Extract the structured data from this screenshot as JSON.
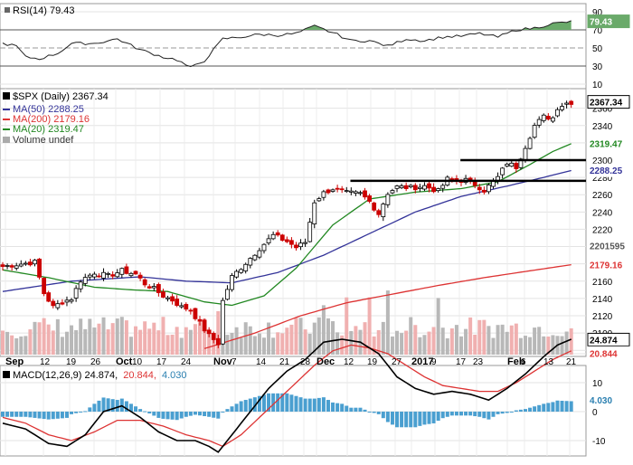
{
  "header": {
    "rsi_label": "RSI(14) 79.43",
    "price_label": "$SPX (Daily) 2367.34",
    "ma50_label": "MA(50) 2288.25",
    "ma200_label": "MA(200) 2179.16",
    "ma20_label": "MA(20) 2319.47",
    "volume_label": "Volume undef",
    "macd_label_a": "MACD(12,26,9) 24.874,",
    "macd_label_b": "20.844,",
    "macd_label_c": "4.030"
  },
  "colors": {
    "up_candle": "#000000",
    "down_candle": "#cc0000",
    "ma50": "#333399",
    "ma200": "#dd3333",
    "ma20": "#228822",
    "volume_up": "#b8b8b8",
    "volume_down": "#f0b0b0",
    "macd_line": "#000000",
    "signal_line": "#dd3333",
    "histogram": "#4a9fd0",
    "rsi_fill": "#6aaa6a"
  },
  "chart_data": {
    "type": "candlestick",
    "x_ticks": [
      "Sep",
      "12",
      "19",
      "26",
      "Oct",
      "10",
      "17",
      "24",
      "Nov",
      "7",
      "14",
      "21",
      "28",
      "Dec",
      "12",
      "19",
      "27",
      "2017",
      "9",
      "17",
      "23",
      "Feb",
      "6",
      "13",
      "21"
    ],
    "price_y_ticks": [
      2080,
      2100,
      2120,
      2140,
      2160,
      2180,
      2200,
      2220,
      2240,
      2260,
      2280,
      2300,
      2320,
      2340,
      2360
    ],
    "price_ylim": [
      2075,
      2375
    ],
    "rsi_ticks": [
      90,
      70,
      50,
      30,
      10
    ],
    "rsi_ylim": [
      5,
      95
    ],
    "macd_ticks": [
      20,
      10,
      0,
      -10
    ],
    "macd_ylim": [
      -15,
      30
    ],
    "price_anchor_points": [
      [
        0,
        2177
      ],
      [
        4,
        2180
      ],
      [
        7,
        2182
      ],
      [
        9,
        2146
      ],
      [
        11,
        2130
      ],
      [
        13,
        2136
      ],
      [
        15,
        2140
      ],
      [
        17,
        2161
      ],
      [
        20,
        2170
      ],
      [
        23,
        2166
      ],
      [
        26,
        2172
      ],
      [
        29,
        2168
      ],
      [
        31,
        2157
      ],
      [
        33,
        2151
      ],
      [
        35,
        2143
      ],
      [
        37,
        2138
      ],
      [
        39,
        2130
      ],
      [
        41,
        2127
      ],
      [
        43,
        2111
      ],
      [
        45,
        2097
      ],
      [
        47,
        2088
      ],
      [
        48,
        2137
      ],
      [
        50,
        2165
      ],
      [
        53,
        2181
      ],
      [
        56,
        2198
      ],
      [
        59,
        2213
      ],
      [
        62,
        2206
      ],
      [
        64,
        2199
      ],
      [
        66,
        2205
      ],
      [
        68,
        2252
      ],
      [
        70,
        2262
      ],
      [
        72,
        2267
      ],
      [
        75,
        2262
      ],
      [
        78,
        2261
      ],
      [
        80,
        2252
      ],
      [
        82,
        2238
      ],
      [
        84,
        2262
      ],
      [
        86,
        2269
      ],
      [
        89,
        2268
      ],
      [
        92,
        2270
      ],
      [
        95,
        2264
      ],
      [
        97,
        2278
      ],
      [
        99,
        2276
      ],
      [
        101,
        2277
      ],
      [
        103,
        2272
      ],
      [
        105,
        2265
      ],
      [
        108,
        2280
      ],
      [
        110,
        2297
      ],
      [
        112,
        2292
      ],
      [
        114,
        2316
      ],
      [
        116,
        2340
      ],
      [
        118,
        2350
      ],
      [
        120,
        2349
      ],
      [
        121,
        2361
      ],
      [
        123,
        2366
      ],
      [
        124,
        2367
      ]
    ],
    "horizontal_lines": [
      {
        "price": 2276,
        "from_bar": 64,
        "to_bar": 124
      },
      {
        "price": 2300,
        "from_bar": 88,
        "to_bar": 124
      }
    ],
    "ma50_anchor_points": [
      [
        0,
        2148
      ],
      [
        15,
        2160
      ],
      [
        30,
        2165
      ],
      [
        40,
        2160
      ],
      [
        50,
        2158
      ],
      [
        60,
        2170
      ],
      [
        70,
        2190
      ],
      [
        80,
        2215
      ],
      [
        90,
        2240
      ],
      [
        100,
        2258
      ],
      [
        110,
        2270
      ],
      [
        118,
        2280
      ],
      [
        124,
        2288
      ]
    ],
    "ma200_anchor_points": [
      [
        44,
        2082
      ],
      [
        55,
        2100
      ],
      [
        65,
        2120
      ],
      [
        75,
        2135
      ],
      [
        85,
        2145
      ],
      [
        95,
        2155
      ],
      [
        105,
        2164
      ],
      [
        115,
        2172
      ],
      [
        124,
        2179
      ]
    ],
    "ma20_anchor_points": [
      [
        0,
        2173
      ],
      [
        10,
        2164
      ],
      [
        20,
        2153
      ],
      [
        28,
        2150
      ],
      [
        36,
        2148
      ],
      [
        44,
        2136
      ],
      [
        50,
        2132
      ],
      [
        57,
        2143
      ],
      [
        64,
        2175
      ],
      [
        72,
        2225
      ],
      [
        80,
        2255
      ],
      [
        90,
        2263
      ],
      [
        100,
        2267
      ],
      [
        108,
        2275
      ],
      [
        114,
        2292
      ],
      [
        120,
        2310
      ],
      [
        124,
        2319
      ]
    ],
    "rsi_anchor_points": [
      [
        0,
        55
      ],
      [
        3,
        52
      ],
      [
        5,
        40
      ],
      [
        8,
        38
      ],
      [
        12,
        44
      ],
      [
        15,
        55
      ],
      [
        20,
        55
      ],
      [
        25,
        60
      ],
      [
        30,
        48
      ],
      [
        35,
        40
      ],
      [
        38,
        37
      ],
      [
        41,
        28
      ],
      [
        44,
        36
      ],
      [
        48,
        60
      ],
      [
        52,
        62
      ],
      [
        56,
        65
      ],
      [
        60,
        64
      ],
      [
        64,
        66
      ],
      [
        68,
        74
      ],
      [
        72,
        67
      ],
      [
        76,
        58
      ],
      [
        80,
        58
      ],
      [
        84,
        52
      ],
      [
        88,
        60
      ],
      [
        92,
        58
      ],
      [
        96,
        62
      ],
      [
        100,
        63
      ],
      [
        104,
        66
      ],
      [
        108,
        62
      ],
      [
        112,
        70
      ],
      [
        116,
        72
      ],
      [
        120,
        77
      ],
      [
        124,
        79
      ]
    ],
    "macd_anchor_points": [
      [
        0,
        -4
      ],
      [
        5,
        -6
      ],
      [
        10,
        -11
      ],
      [
        14,
        -12
      ],
      [
        18,
        -8
      ],
      [
        22,
        0
      ],
      [
        26,
        2
      ],
      [
        30,
        -2
      ],
      [
        34,
        -7
      ],
      [
        38,
        -10
      ],
      [
        42,
        -10
      ],
      [
        45,
        -12
      ],
      [
        47,
        -14
      ],
      [
        50,
        -8
      ],
      [
        54,
        0
      ],
      [
        58,
        8
      ],
      [
        62,
        14
      ],
      [
        66,
        18
      ],
      [
        70,
        24
      ],
      [
        74,
        25
      ],
      [
        78,
        24
      ],
      [
        82,
        20
      ],
      [
        86,
        12
      ],
      [
        90,
        8
      ],
      [
        94,
        6
      ],
      [
        98,
        7
      ],
      [
        102,
        6
      ],
      [
        106,
        4
      ],
      [
        110,
        8
      ],
      [
        114,
        13
      ],
      [
        118,
        19
      ],
      [
        121,
        23
      ],
      [
        124,
        25
      ]
    ],
    "signal_anchor_points": [
      [
        0,
        -2
      ],
      [
        5,
        -4
      ],
      [
        10,
        -8
      ],
      [
        15,
        -10
      ],
      [
        20,
        -7
      ],
      [
        25,
        -3
      ],
      [
        30,
        -3
      ],
      [
        35,
        -5
      ],
      [
        40,
        -8
      ],
      [
        45,
        -10
      ],
      [
        48,
        -12
      ],
      [
        52,
        -8
      ],
      [
        56,
        -2
      ],
      [
        60,
        4
      ],
      [
        64,
        10
      ],
      [
        68,
        16
      ],
      [
        72,
        21
      ],
      [
        76,
        23
      ],
      [
        80,
        22
      ],
      [
        84,
        20
      ],
      [
        88,
        16
      ],
      [
        92,
        12
      ],
      [
        96,
        9
      ],
      [
        100,
        8
      ],
      [
        104,
        7
      ],
      [
        108,
        7
      ],
      [
        112,
        10
      ],
      [
        116,
        14
      ],
      [
        120,
        18
      ],
      [
        124,
        21
      ]
    ]
  }
}
